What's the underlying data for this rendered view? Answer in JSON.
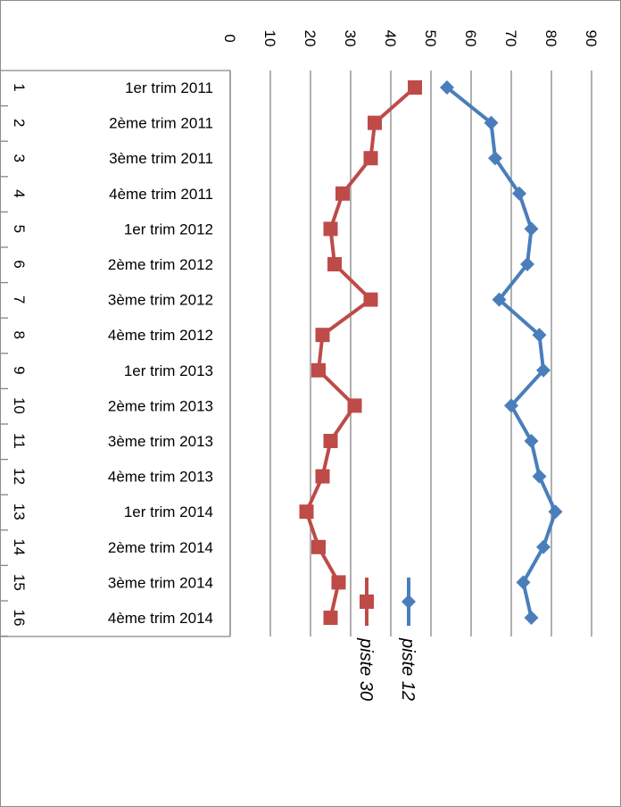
{
  "chart_data": {
    "type": "line",
    "orientation": "rotated-90-clockwise",
    "categories": [
      {
        "num": "1",
        "label": "1er trim 2011"
      },
      {
        "num": "2",
        "label": "2ème trim 2011"
      },
      {
        "num": "3",
        "label": "3ème trim 2011"
      },
      {
        "num": "4",
        "label": "4ème trim 2011"
      },
      {
        "num": "5",
        "label": "1er trim 2012"
      },
      {
        "num": "6",
        "label": "2ème trim 2012"
      },
      {
        "num": "7",
        "label": "3ème trim 2012"
      },
      {
        "num": "8",
        "label": "4ème trim 2012"
      },
      {
        "num": "9",
        "label": "1er trim 2013"
      },
      {
        "num": "10",
        "label": "2ème trim 2013"
      },
      {
        "num": "11",
        "label": "3ème trim 2013"
      },
      {
        "num": "12",
        "label": "4ème trim 2013"
      },
      {
        "num": "13",
        "label": "1er trim 2014"
      },
      {
        "num": "14",
        "label": "2ème trim 2014"
      },
      {
        "num": "15",
        "label": "3ème trim 2014"
      },
      {
        "num": "16",
        "label": "4ème trim 2014"
      }
    ],
    "series": [
      {
        "name": "piste 12",
        "color": "#4a7ebb",
        "marker": "diamond",
        "values": [
          54,
          65,
          66,
          72,
          75,
          74,
          67,
          77,
          78,
          70,
          75,
          77,
          81,
          78,
          73,
          75
        ]
      },
      {
        "name": "piste 30",
        "color": "#be4b48",
        "marker": "square",
        "values": [
          46,
          36,
          35,
          28,
          25,
          26,
          35,
          23,
          22,
          31,
          25,
          23,
          19,
          22,
          27,
          25
        ]
      }
    ],
    "ylim": [
      0,
      90
    ],
    "yticks": [
      "0",
      "10",
      "20",
      "30",
      "40",
      "50",
      "60",
      "70",
      "80",
      "90"
    ],
    "grid": true,
    "legend": "inside, bottom"
  }
}
